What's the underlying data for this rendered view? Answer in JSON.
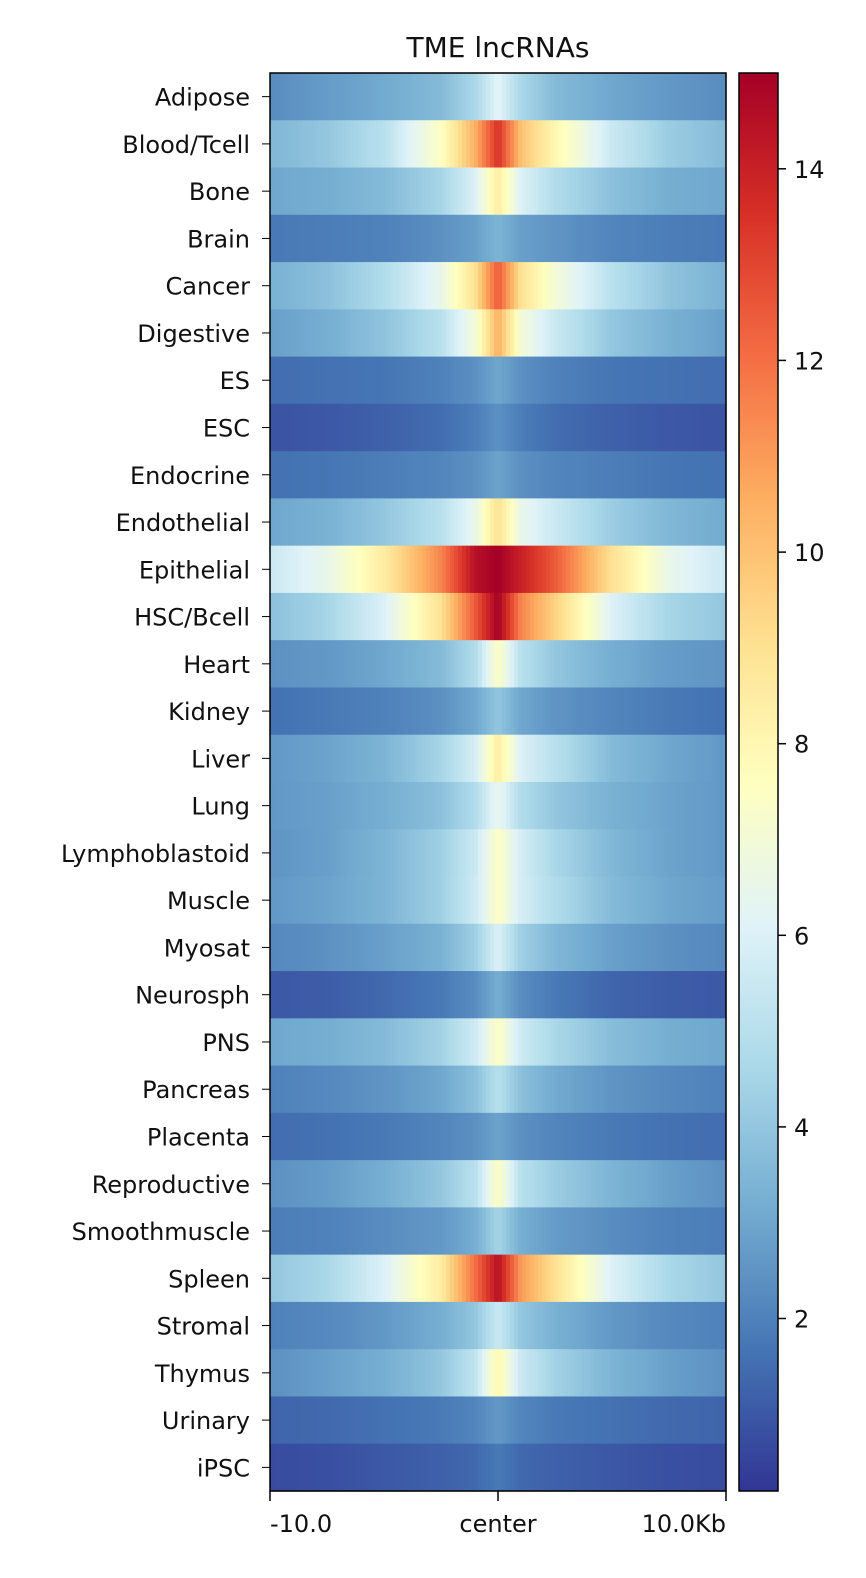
{
  "chart_data": {
    "type": "heatmap",
    "title": "TME lncRNAs",
    "x_tick_labels": [
      "-10.0",
      "center",
      "10.0Kb"
    ],
    "x_range": [
      -10.0,
      10.0
    ],
    "x_unit": "Kb",
    "rows": [
      "Adipose",
      "Blood/Tcell",
      "Bone",
      "Brain",
      "Cancer",
      "Digestive",
      "ES",
      "ESC",
      "Endocrine",
      "Endothelial",
      "Epithelial",
      "HSC/Bcell",
      "Heart",
      "Kidney",
      "Liver",
      "Lung",
      "Lymphoblastoid",
      "Muscle",
      "Myosat",
      "Neurosph",
      "PNS",
      "Pancreas",
      "Placenta",
      "Reproductive",
      "Smoothmuscle",
      "Spleen",
      "Stromal",
      "Thymus",
      "Urinary",
      "iPSC"
    ],
    "profile": {
      "positions_kb": [
        -10,
        -7.5,
        -5,
        -2.5,
        -1,
        0,
        1,
        2.5,
        5,
        7.5,
        10
      ],
      "values": [
        [
          2.3,
          2.7,
          3.1,
          3.6,
          4.6,
          6.2,
          4.6,
          3.6,
          3.0,
          2.6,
          2.3
        ],
        [
          3.5,
          4.0,
          5.0,
          7.5,
          10.5,
          13.5,
          10.0,
          8.0,
          5.5,
          4.2,
          3.6
        ],
        [
          3.0,
          3.2,
          3.6,
          4.5,
          6.0,
          8.5,
          6.0,
          4.8,
          3.8,
          3.2,
          3.0
        ],
        [
          1.8,
          1.9,
          2.0,
          2.4,
          2.8,
          3.4,
          2.8,
          2.5,
          2.1,
          1.9,
          1.8
        ],
        [
          3.3,
          3.8,
          4.8,
          6.5,
          9.0,
          12.5,
          9.0,
          7.0,
          5.0,
          3.9,
          3.3
        ],
        [
          2.8,
          3.2,
          3.9,
          5.0,
          7.0,
          10.5,
          7.0,
          5.5,
          4.0,
          3.3,
          2.8
        ],
        [
          1.5,
          1.6,
          1.7,
          2.0,
          2.4,
          3.0,
          2.4,
          2.0,
          1.7,
          1.6,
          1.5
        ],
        [
          0.9,
          1.0,
          1.2,
          1.5,
          1.9,
          2.4,
          1.9,
          1.5,
          1.2,
          1.0,
          0.9
        ],
        [
          1.6,
          1.7,
          1.9,
          2.1,
          2.4,
          2.9,
          2.4,
          2.1,
          1.9,
          1.7,
          1.6
        ],
        [
          3.0,
          3.3,
          4.0,
          5.0,
          6.5,
          9.0,
          6.5,
          5.5,
          4.2,
          3.5,
          3.1
        ],
        [
          5.5,
          6.5,
          8.5,
          11.5,
          14.5,
          15.0,
          14.0,
          12.5,
          9.0,
          6.5,
          5.5
        ],
        [
          3.8,
          4.5,
          6.0,
          9.0,
          12.5,
          15.0,
          11.5,
          9.5,
          6.0,
          4.5,
          4.0
        ],
        [
          2.4,
          2.6,
          3.0,
          3.6,
          4.8,
          7.5,
          5.0,
          4.0,
          3.2,
          2.7,
          2.5
        ],
        [
          1.6,
          1.8,
          2.0,
          2.4,
          3.0,
          4.0,
          3.0,
          2.5,
          2.1,
          1.8,
          1.6
        ],
        [
          2.6,
          2.9,
          3.4,
          4.5,
          5.8,
          8.5,
          6.0,
          5.0,
          3.6,
          3.0,
          2.6
        ],
        [
          2.6,
          2.8,
          3.2,
          3.8,
          4.8,
          6.5,
          4.8,
          4.0,
          3.3,
          2.9,
          2.6
        ],
        [
          2.5,
          2.8,
          3.4,
          4.3,
          5.5,
          7.5,
          5.8,
          4.6,
          3.5,
          2.9,
          2.6
        ],
        [
          2.6,
          2.9,
          3.4,
          4.3,
          5.6,
          7.5,
          5.8,
          4.8,
          3.6,
          3.0,
          2.7
        ],
        [
          2.2,
          2.4,
          2.8,
          3.3,
          4.3,
          6.0,
          4.3,
          3.5,
          2.8,
          2.4,
          2.2
        ],
        [
          1.0,
          1.1,
          1.4,
          1.8,
          2.3,
          3.2,
          2.3,
          1.8,
          1.3,
          1.1,
          1.0
        ],
        [
          3.0,
          3.2,
          3.6,
          4.4,
          5.6,
          7.5,
          5.6,
          4.6,
          3.7,
          3.2,
          3.0
        ],
        [
          2.0,
          2.2,
          2.5,
          3.0,
          3.8,
          5.0,
          3.8,
          3.1,
          2.5,
          2.2,
          2.0
        ],
        [
          1.5,
          1.6,
          1.8,
          2.1,
          2.4,
          2.9,
          2.4,
          2.1,
          1.8,
          1.6,
          1.5
        ],
        [
          2.4,
          2.7,
          3.2,
          4.0,
          5.0,
          7.5,
          5.0,
          4.2,
          3.4,
          2.8,
          2.4
        ],
        [
          1.9,
          2.0,
          2.3,
          2.6,
          3.2,
          4.5,
          3.2,
          2.7,
          2.3,
          2.0,
          1.9
        ],
        [
          4.0,
          4.6,
          6.0,
          8.5,
          12.0,
          14.5,
          11.0,
          9.0,
          6.0,
          4.6,
          4.0
        ],
        [
          2.0,
          2.2,
          2.6,
          3.2,
          4.0,
          5.5,
          4.0,
          3.3,
          2.6,
          2.2,
          2.0
        ],
        [
          2.4,
          2.8,
          3.2,
          4.0,
          5.2,
          8.0,
          5.5,
          4.4,
          3.4,
          2.8,
          2.4
        ],
        [
          1.3,
          1.4,
          1.6,
          1.8,
          2.1,
          2.6,
          2.1,
          1.8,
          1.6,
          1.4,
          1.3
        ],
        [
          0.7,
          0.8,
          1.0,
          1.2,
          1.4,
          1.8,
          1.4,
          1.2,
          1.0,
          0.8,
          0.7
        ]
      ]
    },
    "colorbar": {
      "colormap": "RdYlBu_r",
      "vmin": 0.2,
      "vmax": 15.0,
      "ticks": [
        2,
        4,
        6,
        8,
        10,
        12,
        14
      ],
      "tick_labels": [
        "2",
        "4",
        "6",
        "8",
        "10",
        "12",
        "14"
      ]
    }
  }
}
